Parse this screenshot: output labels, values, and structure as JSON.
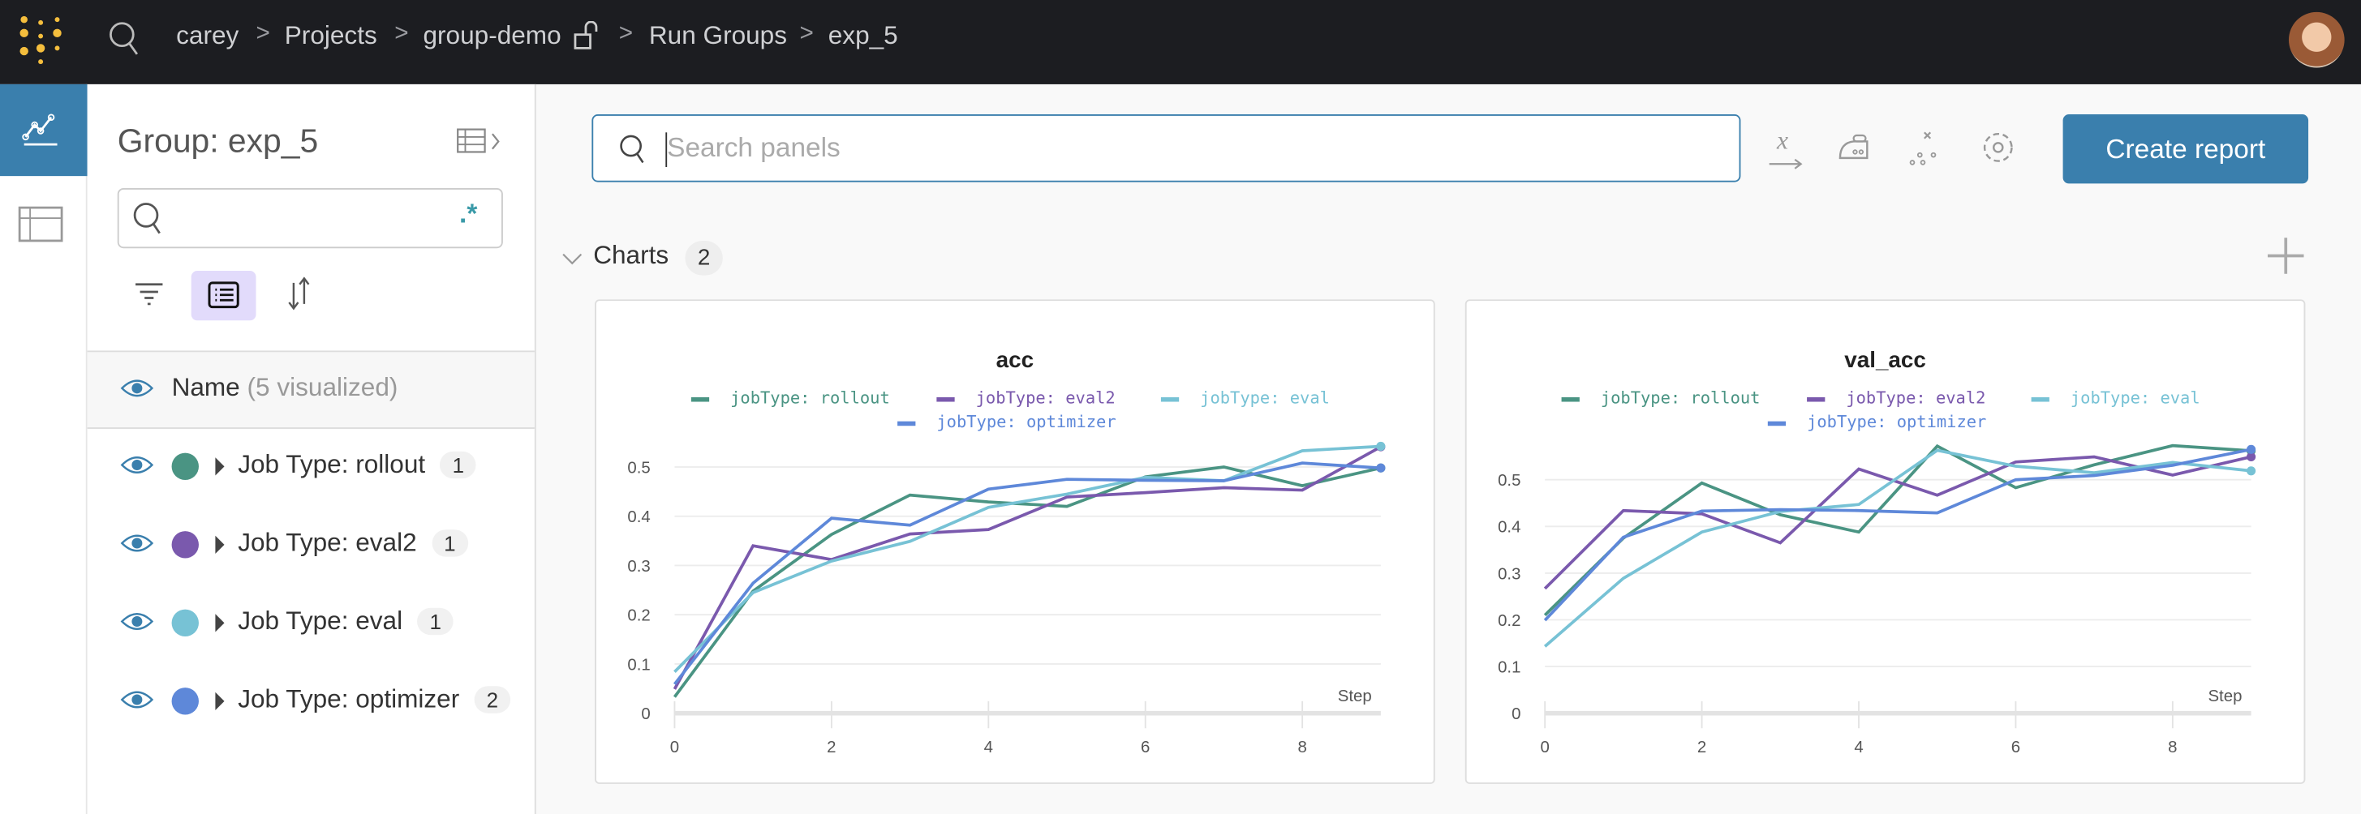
{
  "topbar": {
    "breadcrumbs": [
      "carey",
      "Projects",
      "group-demo",
      "Run Groups",
      "exp_5"
    ],
    "separator": ">",
    "logo": "wandb-dots-logo",
    "avatar": "user-avatar"
  },
  "rail": {
    "items": [
      {
        "icon": "line-chart-icon",
        "active": true
      },
      {
        "icon": "table-icon",
        "active": false
      }
    ]
  },
  "sidebar": {
    "title": "Group: exp_5",
    "search": {
      "value": "",
      "regex_label": ".*"
    },
    "header": {
      "name": "Name",
      "count": "(5 visualized)"
    },
    "groups": [
      {
        "label": "Job Type: rollout",
        "count": "1",
        "color": "#4a9483"
      },
      {
        "label": "Job Type: eval2",
        "count": "1",
        "color": "#7a59ad"
      },
      {
        "label": "Job Type: eval",
        "count": "1",
        "color": "#77c2d5"
      },
      {
        "label": "Job Type: optimizer",
        "count": "2",
        "color": "#5e88d9"
      }
    ]
  },
  "main": {
    "search_placeholder": "Search panels",
    "create_report": "Create report",
    "section": {
      "title": "Charts",
      "count": "2"
    },
    "accent": "#3a7fad"
  },
  "chart_data": [
    {
      "type": "line",
      "title": "acc",
      "xlabel": "Step",
      "x": [
        0,
        1,
        2,
        3,
        4,
        5,
        6,
        7,
        8,
        9
      ],
      "xlim": [
        0,
        9
      ],
      "ylim": [
        0,
        0.55
      ],
      "xticks": [
        "0",
        "2",
        "4",
        "6",
        "8"
      ],
      "yticks": [
        "0",
        "0.1",
        "0.2",
        "0.3",
        "0.4",
        "0.5"
      ],
      "grid": true,
      "legend": "top",
      "series": [
        {
          "name": "jobType: rollout",
          "color": "#4a9483",
          "values": [
            0.033,
            0.248,
            0.363,
            0.443,
            0.429,
            0.42,
            0.48,
            0.5,
            0.462,
            0.498
          ]
        },
        {
          "name": "jobType: eval2",
          "color": "#7a59ad",
          "values": [
            0.049,
            0.34,
            0.312,
            0.364,
            0.373,
            0.439,
            0.448,
            0.458,
            0.453,
            0.541
          ]
        },
        {
          "name": "jobType: eval",
          "color": "#77c2d5",
          "values": [
            0.084,
            0.245,
            0.309,
            0.349,
            0.418,
            0.445,
            0.479,
            0.472,
            0.533,
            0.542
          ]
        },
        {
          "name": "jobType: optimizer",
          "color": "#5e88d9",
          "values": [
            0.059,
            0.264,
            0.396,
            0.382,
            0.455,
            0.475,
            0.473,
            0.472,
            0.508,
            0.498
          ]
        }
      ]
    },
    {
      "type": "line",
      "title": "val_acc",
      "xlabel": "Step",
      "x": [
        0,
        1,
        2,
        3,
        4,
        5,
        6,
        7,
        8,
        9
      ],
      "xlim": [
        0,
        9
      ],
      "ylim": [
        0,
        0.58
      ],
      "xticks": [
        "0",
        "2",
        "4",
        "6",
        "8"
      ],
      "yticks": [
        "0",
        "0.1",
        "0.2",
        "0.3",
        "0.4",
        "0.5"
      ],
      "grid": true,
      "legend": "top",
      "series": [
        {
          "name": "jobType: rollout",
          "color": "#4a9483",
          "values": [
            0.21,
            0.375,
            0.493,
            0.425,
            0.388,
            0.572,
            0.483,
            0.532,
            0.573,
            0.562
          ]
        },
        {
          "name": "jobType: eval2",
          "color": "#7a59ad",
          "values": [
            0.267,
            0.434,
            0.427,
            0.365,
            0.523,
            0.467,
            0.538,
            0.549,
            0.51,
            0.549
          ]
        },
        {
          "name": "jobType: eval",
          "color": "#77c2d5",
          "values": [
            0.143,
            0.289,
            0.388,
            0.432,
            0.447,
            0.563,
            0.529,
            0.515,
            0.537,
            0.519
          ]
        },
        {
          "name": "jobType: optimizer",
          "color": "#5e88d9",
          "values": [
            0.199,
            0.377,
            0.433,
            0.436,
            0.434,
            0.429,
            0.5,
            0.509,
            0.531,
            0.565
          ]
        }
      ]
    }
  ]
}
